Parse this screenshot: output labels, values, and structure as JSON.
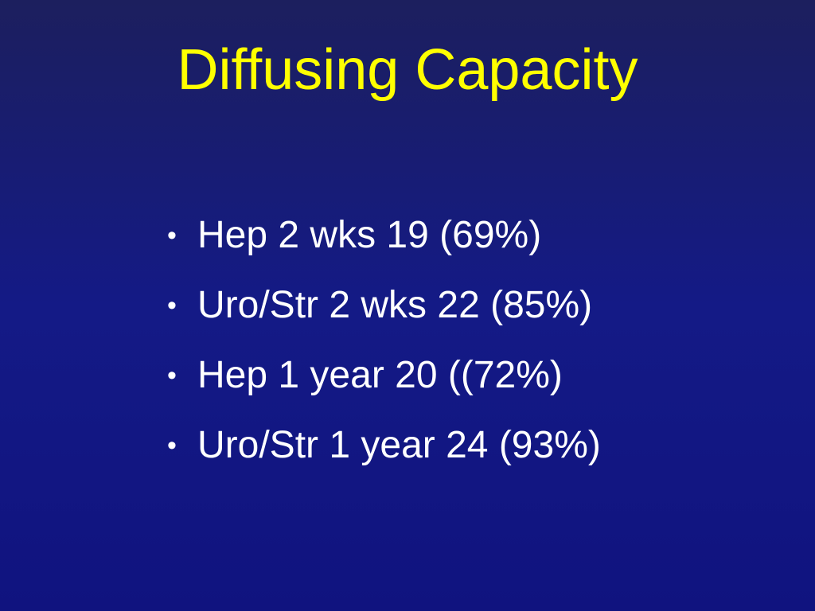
{
  "slide": {
    "title": "Diffusing Capacity",
    "bullets": [
      "Hep 2 wks 19 (69%)",
      "Uro/Str 2 wks 22 (85%)",
      "Hep 1 year 20 ((72%)",
      "Uro/Str 1 year 24 (93%)"
    ]
  }
}
